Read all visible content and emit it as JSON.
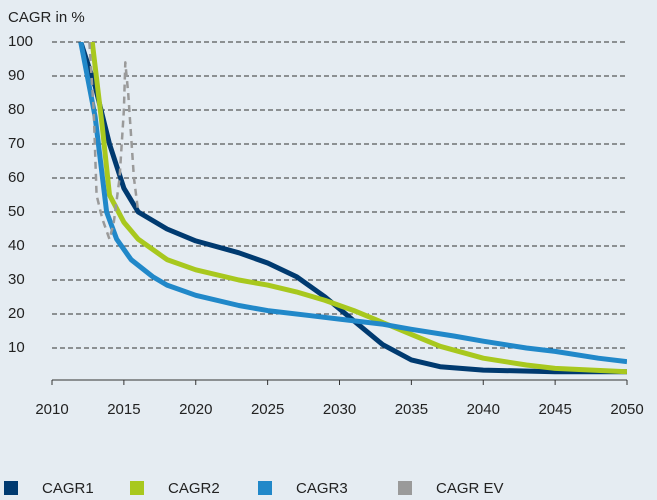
{
  "chart_data": {
    "type": "line",
    "title": "CAGR in %",
    "xlim": [
      2010,
      2050
    ],
    "xticks": [
      2010,
      2015,
      2020,
      2025,
      2030,
      2035,
      2040,
      2045,
      2050
    ],
    "ylim": [
      0,
      100
    ],
    "yticks": [
      10,
      20,
      30,
      40,
      50,
      60,
      70,
      80,
      90,
      100
    ],
    "grid": true,
    "series": [
      {
        "name": "CAGR1",
        "color": "#003a70",
        "dashed": false,
        "x": [
          2012,
          2013,
          2014,
          2015,
          2016,
          2018,
          2020,
          2023,
          2025,
          2027,
          2029,
          2031,
          2033,
          2035,
          2037,
          2040,
          2045,
          2050
        ],
        "values": [
          100,
          87,
          70,
          57,
          50,
          45,
          41.5,
          38,
          35,
          31,
          25,
          18,
          11,
          6.5,
          4.5,
          3.5,
          3,
          3
        ]
      },
      {
        "name": "CAGR2",
        "color": "#a8c81e",
        "dashed": false,
        "x": [
          2012.8,
          2013.5,
          2014,
          2015,
          2016,
          2018,
          2020,
          2023,
          2025,
          2027,
          2029,
          2031,
          2033,
          2035,
          2037,
          2040,
          2043,
          2045,
          2050
        ],
        "values": [
          100,
          75,
          55,
          47,
          42,
          36,
          33,
          30,
          28.5,
          26.5,
          24,
          21,
          17.5,
          14,
          10.5,
          7,
          5,
          4,
          3
        ]
      },
      {
        "name": "CAGR3",
        "color": "#2188c9",
        "dashed": false,
        "x": [
          2012,
          2013,
          2013.8,
          2014.5,
          2015.5,
          2017,
          2018,
          2020,
          2023,
          2025,
          2028,
          2030,
          2033,
          2035,
          2038,
          2040,
          2043,
          2045,
          2048,
          2050
        ],
        "values": [
          100,
          78,
          50,
          42,
          36,
          31,
          28.5,
          25.5,
          22.5,
          21,
          19.5,
          18.5,
          17,
          15.5,
          13.5,
          12,
          10,
          9,
          7,
          6
        ]
      },
      {
        "name": "CAGR EV",
        "color": "#9a9a9a",
        "dashed": true,
        "x": [
          2012.6,
          2012.9,
          2013.1,
          2013.5,
          2014,
          2014.3,
          2014.7,
          2015,
          2015.1,
          2015.3,
          2015.7,
          2016
        ],
        "values": [
          100,
          80,
          55,
          48,
          42,
          47,
          60,
          80,
          94,
          85,
          60,
          50
        ]
      }
    ]
  }
}
